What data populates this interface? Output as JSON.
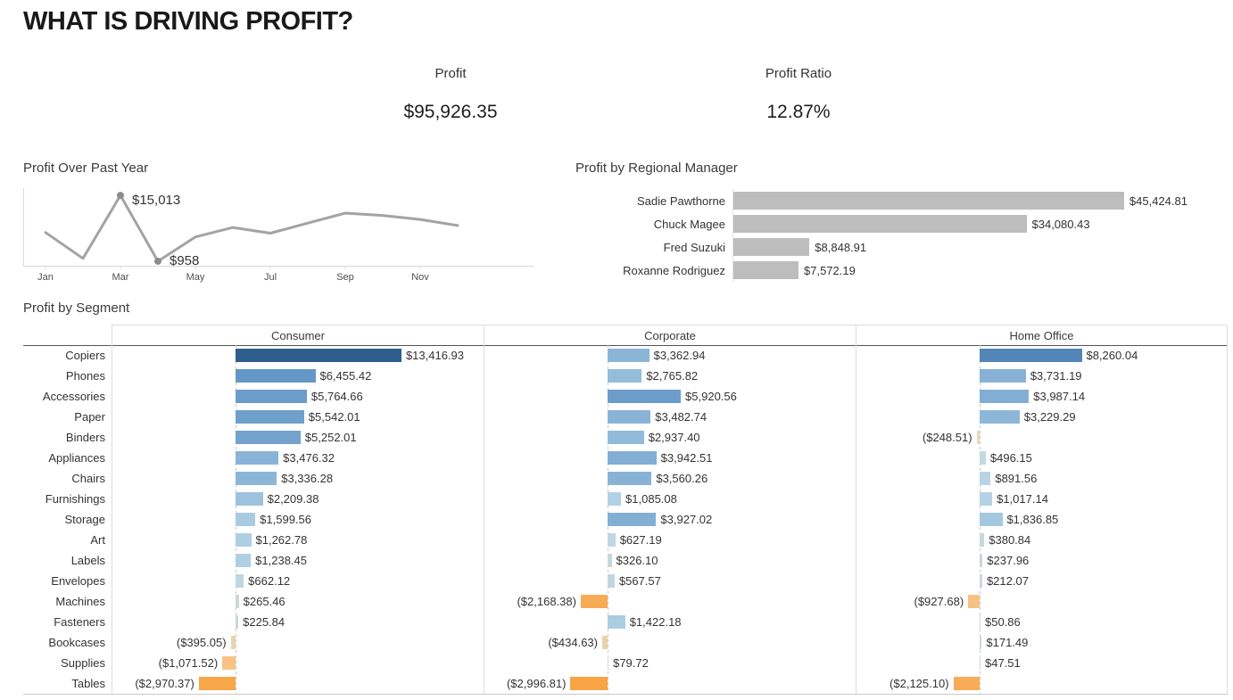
{
  "title": "WHAT IS DRIVING PROFIT?",
  "kpis": [
    {
      "label": "Profit",
      "value": "$95,926.35"
    },
    {
      "label": "Profit Ratio",
      "value": "12.87%"
    }
  ],
  "chart_data": [
    {
      "type": "line",
      "title": "Profit Over Past Year",
      "x": [
        "Jan",
        "Feb",
        "Mar",
        "Apr",
        "May",
        "Jun",
        "Jul",
        "Aug",
        "Sep",
        "Oct",
        "Nov",
        "Dec"
      ],
      "values": [
        7100,
        1560,
        15013,
        958,
        6150,
        8170,
        6940,
        9090,
        11230,
        10740,
        9880,
        8590
      ],
      "visible_ticks": [
        "Jan",
        "Mar",
        "May",
        "Jul",
        "Sep",
        "Nov"
      ],
      "annotations": [
        {
          "index": 2,
          "text": "$15,013"
        },
        {
          "index": 3,
          "text": "$958"
        }
      ],
      "ylim": [
        0,
        15800
      ],
      "line_color": "#a3a3a3",
      "marker_color": "#8d8d8d",
      "axis_color": "#d9d9d9",
      "tick_label_color": "#4f4f4f"
    },
    {
      "type": "bar",
      "title": "Profit by Regional Manager",
      "orientation": "horizontal",
      "categories": [
        "Sadie Pawthorne",
        "Chuck Magee",
        "Fred Suzuki",
        "Roxanne Rodriguez"
      ],
      "values": [
        45424.81,
        34080.43,
        8848.91,
        7572.19
      ],
      "labels": [
        "$45,424.81",
        "$34,080.43",
        "$8,848.91",
        "$7,572.19"
      ],
      "bar_color": "#bdbdbd"
    },
    {
      "type": "bar",
      "title": "Profit by Segment",
      "orientation": "horizontal",
      "categories": [
        "Copiers",
        "Phones",
        "Accessories",
        "Paper",
        "Binders",
        "Appliances",
        "Chairs",
        "Furnishings",
        "Storage",
        "Art",
        "Labels",
        "Envelopes",
        "Machines",
        "Fasteners",
        "Bookcases",
        "Supplies",
        "Tables"
      ],
      "series": [
        {
          "name": "Consumer",
          "values": [
            13416.93,
            6455.42,
            5764.66,
            5542.01,
            5252.01,
            3476.32,
            3336.28,
            2209.38,
            1599.56,
            1262.78,
            1238.45,
            662.12,
            265.46,
            225.84,
            -395.05,
            -1071.52,
            -2970.37
          ],
          "labels": [
            "$13,416.93",
            "$6,455.42",
            "$5,764.66",
            "$5,542.01",
            "$5,252.01",
            "$3,476.32",
            "$3,336.28",
            "$2,209.38",
            "$1,599.56",
            "$1,262.78",
            "$1,238.45",
            "$662.12",
            "$265.46",
            "$225.84",
            "($395.05)",
            "($1,071.52)",
            "($2,970.37)"
          ],
          "colors": [
            "#2d5e8b",
            "#6497c7",
            "#6c9dca",
            "#6f9fcb",
            "#73a2cd",
            "#89b4d7",
            "#8bb6d8",
            "#9dc2de",
            "#a8cbe2",
            "#aecfe3",
            "#afcfe3",
            "#bed7e2",
            "#c7d8da",
            "#c8d8d9",
            "#ead4ae",
            "#f8c285",
            "#f7a648"
          ]
        },
        {
          "name": "Corporate",
          "values": [
            3362.94,
            2765.82,
            5920.56,
            3482.74,
            2937.4,
            3942.51,
            3560.26,
            1085.08,
            3927.02,
            627.19,
            326.1,
            567.57,
            -2168.38,
            1422.18,
            -434.63,
            79.72,
            -2996.81
          ],
          "labels": [
            "$3,362.94",
            "$2,765.82",
            "$5,920.56",
            "$3,482.74",
            "$2,937.40",
            "$3,942.51",
            "$3,560.26",
            "$1,085.08",
            "$3,927.02",
            "$627.19",
            "$326.10",
            "$567.57",
            "($2,168.38)",
            "$1,422.18",
            "($434.63)",
            "$79.72",
            "($2,996.81)"
          ],
          "colors": [
            "#8bb5d7",
            "#95bcdb",
            "#6b9cca",
            "#89b4d7",
            "#92bada",
            "#83afd4",
            "#88b3d6",
            "#b2d1e4",
            "#83afd4",
            "#bfd7e2",
            "#c6d8db",
            "#c1d7e0",
            "#f8ab55",
            "#abcde2",
            "#e9d2aa",
            "#cdd9d8",
            "#f7a545"
          ]
        },
        {
          "name": "Home Office",
          "values": [
            8260.04,
            3731.19,
            3987.14,
            3229.29,
            -248.51,
            496.15,
            891.56,
            1017.14,
            1836.85,
            380.84,
            237.96,
            212.07,
            -927.68,
            50.86,
            171.49,
            47.51,
            -2125.1
          ],
          "labels": [
            "$8,260.04",
            "$3,731.19",
            "$3,987.14",
            "$3,229.29",
            "($248.51)",
            "$496.15",
            "$891.56",
            "$1,017.14",
            "$1,836.85",
            "$380.84",
            "$237.96",
            "$212.07",
            "($927.68)",
            "$50.86",
            "$171.49",
            "$47.51",
            "($2,125.10)"
          ],
          "colors": [
            "#5286b7",
            "#86b1d5",
            "#82aed4",
            "#8db7d8",
            "#ecd8b8",
            "#c3d8dd",
            "#b8d4e5",
            "#b4d2e4",
            "#a4c8e0",
            "#c5d8dc",
            "#c8d8d9",
            "#c9d8d8",
            "#f7c183",
            "#cfd9d6",
            "#cbd8d7",
            "#cfd9d6",
            "#f8ac58"
          ]
        }
      ]
    }
  ]
}
